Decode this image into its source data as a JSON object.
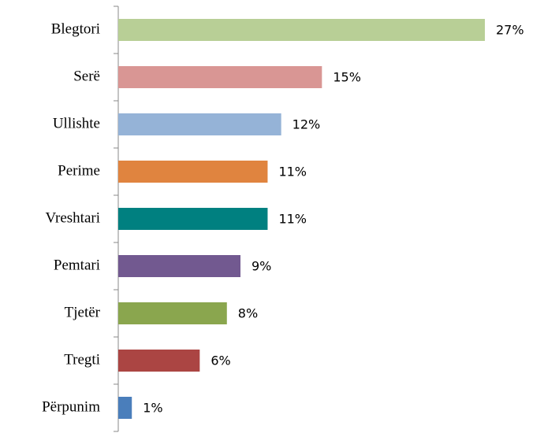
{
  "chart_data": {
    "type": "bar",
    "orientation": "horizontal",
    "categories": [
      "Blegtori",
      "Serë",
      "Ullishte",
      "Perime",
      "Vreshtari",
      "Pemtari",
      "Tjetër",
      "Tregti",
      "Përpunim"
    ],
    "values": [
      27,
      15,
      12,
      11,
      11,
      9,
      8,
      6,
      1
    ],
    "value_labels": [
      "27%",
      "15%",
      "12%",
      "11%",
      "11%",
      "9%",
      "8%",
      "6%",
      "1%"
    ],
    "colors": [
      "#b8cf96",
      "#d99694",
      "#95b3d7",
      "#e0843f",
      "#008080",
      "#725990",
      "#8aa64e",
      "#ab4543",
      "#4a7ebb"
    ]
  }
}
